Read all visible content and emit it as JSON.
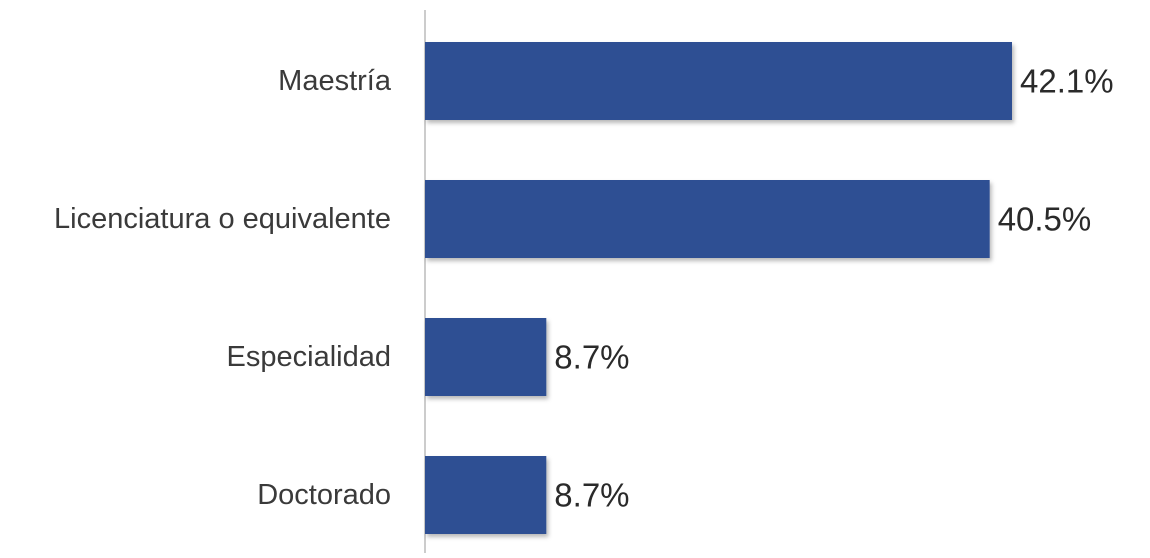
{
  "chart_data": {
    "type": "bar",
    "orientation": "horizontal",
    "categories": [
      "Maestría",
      "Licenciatura o equivalente",
      "Especialidad",
      "Doctorado"
    ],
    "values": [
      42.1,
      40.5,
      8.7,
      8.7
    ],
    "value_labels": [
      "42.1%",
      "40.5%",
      "8.7%",
      "8.7%"
    ],
    "unit": "%",
    "title": "",
    "xlabel": "",
    "ylabel": "",
    "xlim": [
      0,
      42.1
    ],
    "grid": false,
    "legend": "none",
    "colors": {
      "bar": "#2f5093",
      "axis": "#cccccc"
    }
  }
}
